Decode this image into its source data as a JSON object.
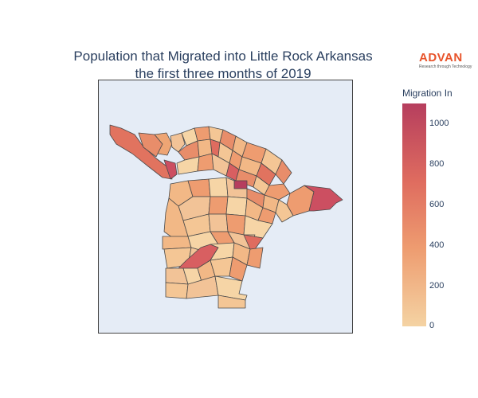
{
  "title": {
    "line1": "Population that Migrated into Little Rock Arkansas",
    "line2": "the first three months of 2019"
  },
  "logo": {
    "text": "ADVAN",
    "tagline": "Research through Technology",
    "color": "#e8532a"
  },
  "colorbar": {
    "title": "Migration In",
    "min": 0,
    "max": 1100,
    "ticks": [
      "1000",
      "800",
      "600",
      "400",
      "200",
      "0"
    ],
    "colorscale": [
      "#f4d3a3",
      "#ee9c70",
      "#df6c5f",
      "#b63e5e"
    ]
  },
  "map": {
    "background": "#e5ecf6",
    "border_color": "#444444"
  }
}
